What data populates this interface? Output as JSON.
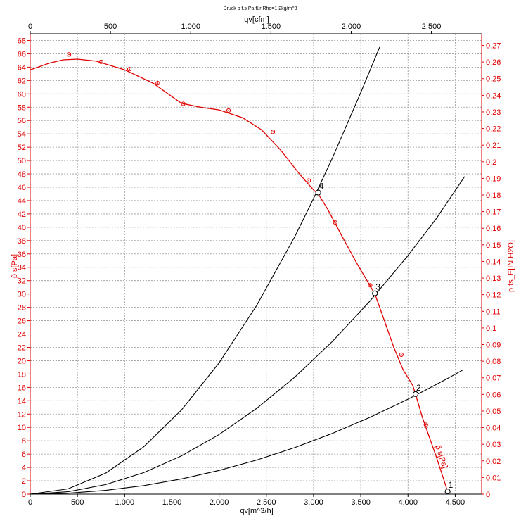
{
  "chart_data": {
    "type": "line",
    "title": "Druck p f.s[Pa]für Rho=1,2kg/m^3",
    "xlabel": "qv[m^3/h]",
    "x2label": "qv[cfm]",
    "ylabel": "p̃ s[Pa]",
    "y2label": "p fs_E[IN H2O]",
    "xlim": [
      0,
      4780
    ],
    "ylim": [
      0,
      69
    ],
    "x2lim": [
      0,
      2813
    ],
    "y2lim": [
      0,
      0.277
    ],
    "grid": true,
    "x_ticks": [
      "0",
      "500",
      "1.000",
      "1.500",
      "2.000",
      "2.500",
      "3.000",
      "3.500",
      "4.000",
      "4.500"
    ],
    "x_tick_values": [
      0,
      500,
      1000,
      1500,
      2000,
      2500,
      3000,
      3500,
      4000,
      4500
    ],
    "x2_ticks": [
      "0",
      "500",
      "1.000",
      "1.500",
      "2.000",
      "2.500"
    ],
    "x2_tick_values": [
      0,
      500,
      1000,
      1500,
      2000,
      2500
    ],
    "y_ticks": [
      "0",
      "2",
      "4",
      "6",
      "8",
      "10",
      "12",
      "14",
      "16",
      "18",
      "20",
      "22",
      "24",
      "26",
      "28",
      "30",
      "32",
      "34",
      "36",
      "38",
      "40",
      "42",
      "44",
      "46",
      "48",
      "50",
      "52",
      "54",
      "56",
      "58",
      "60",
      "62",
      "64",
      "66",
      "68"
    ],
    "y_tick_values": [
      0,
      2,
      4,
      6,
      8,
      10,
      12,
      14,
      16,
      18,
      20,
      22,
      24,
      26,
      28,
      30,
      32,
      34,
      36,
      38,
      40,
      42,
      44,
      46,
      48,
      50,
      52,
      54,
      56,
      58,
      60,
      62,
      64,
      66,
      68
    ],
    "y2_ticks": [
      "0",
      "0,01",
      "0,02",
      "0,03",
      "0,04",
      "0,05",
      "0,06",
      "0,07",
      "0,08",
      "0,09",
      "0,1",
      "0,11",
      "0,12",
      "0,13",
      "0,14",
      "0,15",
      "0,16",
      "0,17",
      "0,18",
      "0,19",
      "0,2",
      "0,21",
      "0,22",
      "0,23",
      "0,24",
      "0,25",
      "0,26",
      "0,27"
    ],
    "y2_tick_values": [
      0,
      0.01,
      0.02,
      0.03,
      0.04,
      0.05,
      0.06,
      0.07,
      0.08,
      0.09,
      0.1,
      0.11,
      0.12,
      0.13,
      0.14,
      0.15,
      0.16,
      0.17,
      0.18,
      0.19,
      0.2,
      0.21,
      0.22,
      0.23,
      0.24,
      0.25,
      0.26,
      0.27
    ],
    "fan_curve": {
      "label": "p̃ s[Pa]",
      "color": "#e00000",
      "x": [
        0,
        200,
        350,
        500,
        700,
        1000,
        1300,
        1600,
        1800,
        2000,
        2250,
        2450,
        2650,
        2850,
        3000,
        3050,
        3150,
        3300,
        3450,
        3600,
        3650,
        3750,
        3850,
        3950,
        4050,
        4080,
        4150,
        4230,
        4300,
        4370,
        4420
      ],
      "y": [
        63.6,
        64.6,
        65.1,
        65.2,
        64.9,
        63.6,
        61.6,
        58.6,
        58.0,
        57.6,
        56.4,
        54.6,
        51.6,
        48.0,
        45.6,
        45.0,
        42.7,
        38.7,
        34.8,
        31.2,
        30.0,
        26.0,
        22.0,
        18.6,
        16.3,
        15.0,
        11.6,
        8.4,
        5.6,
        2.6,
        0.4
      ]
    },
    "fan_markers": {
      "x": [
        410,
        750,
        1050,
        1350,
        1620,
        2100,
        2570,
        2950,
        3230,
        3600,
        3930,
        4190,
        4420
      ],
      "y": [
        65.9,
        64.8,
        63.7,
        61.6,
        58.5,
        57.5,
        54.3,
        47.0,
        40.7,
        31.3,
        20.9,
        10.4,
        0.5
      ]
    },
    "series": [
      {
        "name": "2",
        "x": [
          0,
          400,
          800,
          1200,
          1600,
          2000,
          2400,
          2800,
          3200,
          3600,
          4000,
          4200,
          4400,
          4580
        ],
        "y": [
          0,
          0.14,
          0.57,
          1.28,
          2.28,
          3.56,
          5.12,
          6.97,
          9.11,
          11.53,
          14.23,
          15.7,
          17.2,
          18.6
        ]
      },
      {
        "name": "3",
        "x": [
          0,
          400,
          800,
          1200,
          1600,
          2000,
          2400,
          2800,
          3200,
          3600,
          4000,
          4300,
          4600
        ],
        "y": [
          0,
          0.36,
          1.43,
          3.22,
          5.72,
          8.94,
          12.87,
          17.52,
          22.89,
          28.97,
          35.76,
          41.3,
          47.6
        ]
      },
      {
        "name": "4",
        "x": [
          0,
          400,
          800,
          1200,
          1600,
          2000,
          2400,
          2800,
          3000,
          3200,
          3500,
          3700
        ],
        "y": [
          0,
          0.79,
          3.15,
          7.08,
          12.59,
          19.68,
          28.33,
          38.56,
          44.3,
          50.4,
          60.2,
          67.0
        ]
      }
    ],
    "operating_points": [
      {
        "label": "2",
        "x": 4080,
        "y": 15.0
      },
      {
        "label": "3",
        "x": 3650,
        "y": 30.1
      },
      {
        "label": "4",
        "x": 3050,
        "y": 45.2
      },
      {
        "label": "1",
        "x": 4420,
        "y": 0.4
      }
    ],
    "colors": {
      "fan": "#e00000",
      "system": "#000000",
      "grid": "#999999"
    }
  }
}
